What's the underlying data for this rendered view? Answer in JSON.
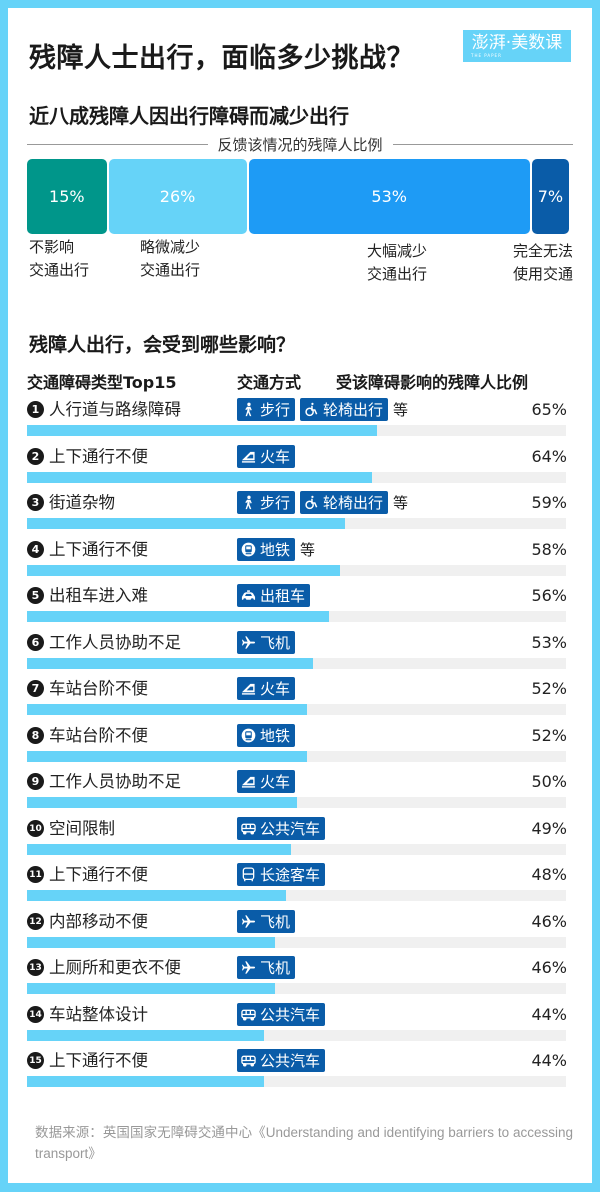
{
  "title": "残障人士出行，面临多少挑战？",
  "logo": {
    "text": "澎湃·美数课",
    "sub": "THE PAPER"
  },
  "section1": {
    "title": "近八成残障人因出行障碍而减少出行",
    "legend": "反馈该情况的残障人比例",
    "segments": [
      {
        "value": "15%",
        "label_line1": "不影响",
        "label_line2": "交通出行",
        "color": "#00968a"
      },
      {
        "value": "26%",
        "label_line1": "略微减少",
        "label_line2": "交通出行",
        "color": "#66d3f8"
      },
      {
        "value": "53%",
        "label_line1": "大幅减少",
        "label_line2": "交通出行",
        "color": "#1e9bf5"
      },
      {
        "value": "7%",
        "label_line1": "完全无法",
        "label_line2": "使用交通",
        "color": "#0a5ca8"
      }
    ]
  },
  "section2": {
    "title": "残障人出行，会受到哪些影响？",
    "col_headers": {
      "type": "交通障碍类型Top15",
      "mode": "交通方式",
      "pct": "受该障碍影响的残障人比例"
    },
    "etc_label": "等",
    "rows": [
      {
        "num": "1",
        "label": "人行道与路缘障碍",
        "modes": [
          {
            "icon": "walk",
            "text": "步行"
          },
          {
            "icon": "wheelchair",
            "text": "轮椅出行"
          }
        ],
        "etc": true,
        "pct": "65%",
        "value": 65
      },
      {
        "num": "2",
        "label": "上下通行不便",
        "modes": [
          {
            "icon": "train",
            "text": "火车"
          }
        ],
        "etc": false,
        "pct": "64%",
        "value": 64
      },
      {
        "num": "3",
        "label": "街道杂物",
        "modes": [
          {
            "icon": "walk",
            "text": "步行"
          },
          {
            "icon": "wheelchair",
            "text": "轮椅出行"
          }
        ],
        "etc": true,
        "pct": "59%",
        "value": 59
      },
      {
        "num": "4",
        "label": "上下通行不便",
        "modes": [
          {
            "icon": "metro",
            "text": "地铁"
          }
        ],
        "etc": true,
        "pct": "58%",
        "value": 58
      },
      {
        "num": "5",
        "label": "出租车进入难",
        "modes": [
          {
            "icon": "taxi",
            "text": "出租车"
          }
        ],
        "etc": false,
        "pct": "56%",
        "value": 56
      },
      {
        "num": "6",
        "label": "工作人员协助不足",
        "modes": [
          {
            "icon": "plane",
            "text": "飞机"
          }
        ],
        "etc": false,
        "pct": "53%",
        "value": 53
      },
      {
        "num": "7",
        "label": "车站台阶不便",
        "modes": [
          {
            "icon": "train",
            "text": "火车"
          }
        ],
        "etc": false,
        "pct": "52%",
        "value": 52
      },
      {
        "num": "8",
        "label": "车站台阶不便",
        "modes": [
          {
            "icon": "metro",
            "text": "地铁"
          }
        ],
        "etc": false,
        "pct": "52%",
        "value": 52
      },
      {
        "num": "9",
        "label": "工作人员协助不足",
        "modes": [
          {
            "icon": "train",
            "text": "火车"
          }
        ],
        "etc": false,
        "pct": "50%",
        "value": 50
      },
      {
        "num": "10",
        "label": "空间限制",
        "modes": [
          {
            "icon": "bus",
            "text": "公共汽车"
          }
        ],
        "etc": false,
        "pct": "49%",
        "value": 49
      },
      {
        "num": "11",
        "label": "上下通行不便",
        "modes": [
          {
            "icon": "coach",
            "text": "长途客车"
          }
        ],
        "etc": false,
        "pct": "48%",
        "value": 48
      },
      {
        "num": "12",
        "label": "内部移动不便",
        "modes": [
          {
            "icon": "plane",
            "text": "飞机"
          }
        ],
        "etc": false,
        "pct": "46%",
        "value": 46
      },
      {
        "num": "13",
        "label": "上厕所和更衣不便",
        "modes": [
          {
            "icon": "plane",
            "text": "飞机"
          }
        ],
        "etc": false,
        "pct": "46%",
        "value": 46
      },
      {
        "num": "14",
        "label": "车站整体设计",
        "modes": [
          {
            "icon": "bus",
            "text": "公共汽车"
          }
        ],
        "etc": false,
        "pct": "44%",
        "value": 44
      },
      {
        "num": "15",
        "label": "上下通行不便",
        "modes": [
          {
            "icon": "bus",
            "text": "公共汽车"
          }
        ],
        "etc": false,
        "pct": "44%",
        "value": 44
      }
    ]
  },
  "source": "数据来源：英国国家无障碍交通中心《Understanding and identifying barriers to accessing transport》",
  "colors": {
    "frame": "#66d3f8",
    "bar": "#66d3f8",
    "track": "#f0f0f0",
    "badge": "#0a5ca8"
  },
  "chart_data": [
    {
      "type": "bar",
      "orientation": "horizontal-stacked",
      "title": "近八成残障人因出行障碍而减少出行",
      "subtitle": "反馈该情况的残障人比例",
      "categories": [
        "不影响交通出行",
        "略微减少交通出行",
        "大幅减少交通出行",
        "完全无法使用交通"
      ],
      "values": [
        15,
        26,
        53,
        7
      ],
      "unit": "%"
    },
    {
      "type": "bar",
      "orientation": "horizontal",
      "title": "残障人出行，会受到哪些影响？",
      "xlabel": "受该障碍影响的残障人比例",
      "ylabel": "交通障碍类型Top15",
      "categories": [
        "人行道与路缘障碍",
        "上下通行不便(火车)",
        "街道杂物",
        "上下通行不便(地铁)",
        "出租车进入难",
        "工作人员协助不足(飞机)",
        "车站台阶不便(火车)",
        "车站台阶不便(地铁)",
        "工作人员协助不足(火车)",
        "空间限制",
        "上下通行不便(长途客车)",
        "内部移动不便",
        "上厕所和更衣不便",
        "车站整体设计",
        "上下通行不便(公共汽车)"
      ],
      "values": [
        65,
        64,
        59,
        58,
        56,
        53,
        52,
        52,
        50,
        49,
        48,
        46,
        46,
        44,
        44
      ],
      "xlim": [
        0,
        100
      ],
      "grid": false,
      "unit": "%"
    }
  ]
}
